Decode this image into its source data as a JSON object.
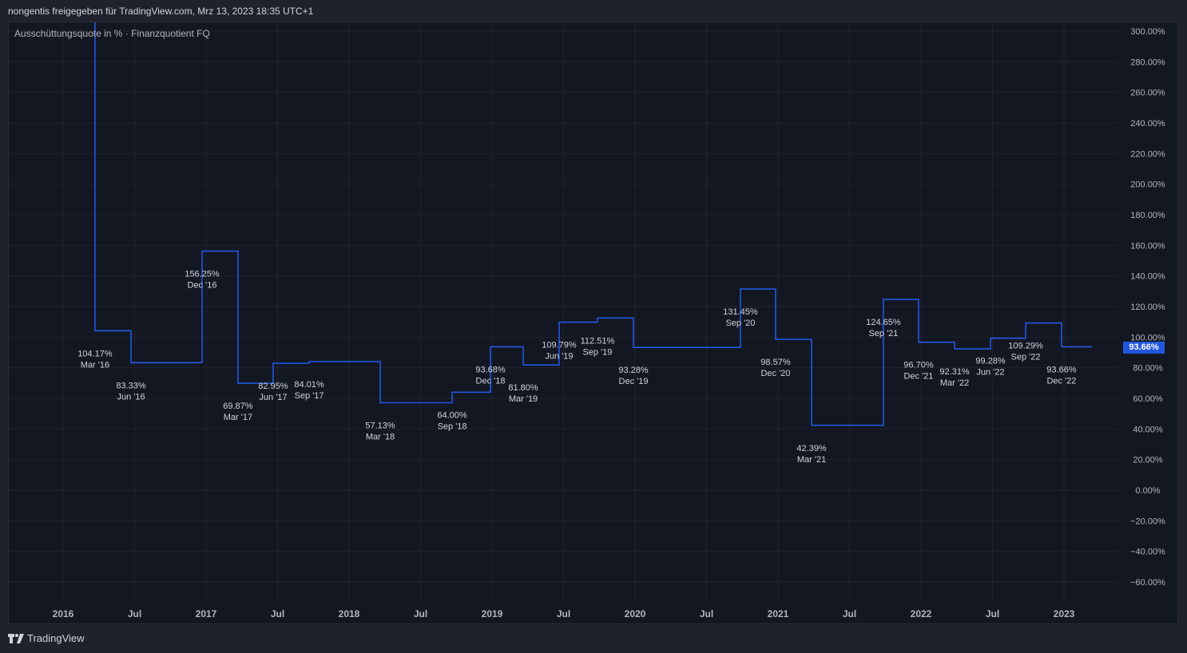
{
  "header": {
    "title": "nongentis freigegeben für TradingView.com, Mrz 13, 2023 18:35 UTC+1"
  },
  "legend": {
    "label": "Ausschüttungsquote in % · Finanzquotient FQ"
  },
  "footer": {
    "brand": "TradingView"
  },
  "last_value_badge": "93.66%",
  "colors": {
    "line": "#2157e0",
    "background": "#131722",
    "grid": "#1f2330",
    "text": "#d1d4dc"
  },
  "chart_data": {
    "type": "line",
    "style": "step",
    "title": "Ausschüttungsquote in % · Finanzquotient FQ",
    "ylim": [
      -70,
      300
    ],
    "yticks": [
      300,
      280,
      260,
      240,
      220,
      200,
      180,
      160,
      140,
      120,
      100,
      80,
      60,
      40,
      20,
      0,
      -20,
      -40,
      -60
    ],
    "ytick_labels": [
      "300.00%",
      "280.00%",
      "260.00%",
      "240.00%",
      "220.00%",
      "200.00%",
      "180.00%",
      "160.00%",
      "140.00%",
      "120.00%",
      "100.00%",
      "80.00%",
      "60.00%",
      "40.00%",
      "20.00%",
      "0.00%",
      "−20.00%",
      "−40.00%",
      "−60.00%"
    ],
    "xlim": [
      2015.78,
      2024.0
    ],
    "xticks": [
      {
        "x": 2016.0,
        "label": "2016"
      },
      {
        "x": 2016.5,
        "label": "Jul"
      },
      {
        "x": 2017.0,
        "label": "2017"
      },
      {
        "x": 2017.5,
        "label": "Jul"
      },
      {
        "x": 2018.0,
        "label": "2018"
      },
      {
        "x": 2018.5,
        "label": "Jul"
      },
      {
        "x": 2019.0,
        "label": "2019"
      },
      {
        "x": 2019.5,
        "label": "Jul"
      },
      {
        "x": 2020.0,
        "label": "2020"
      },
      {
        "x": 2020.5,
        "label": "Jul"
      },
      {
        "x": 2021.0,
        "label": "2021"
      },
      {
        "x": 2021.5,
        "label": "Jul"
      },
      {
        "x": 2022.0,
        "label": "2022"
      },
      {
        "x": 2022.5,
        "label": "Jul"
      },
      {
        "x": 2023.0,
        "label": "2023"
      }
    ],
    "prior_value_offscale": 400,
    "series": [
      {
        "name": "Ausschüttungsquote in %",
        "points": [
          {
            "x": 2016.223,
            "value": 104.17,
            "label": "104.17%",
            "period": "Mar '16"
          },
          {
            "x": 2016.475,
            "value": 83.33,
            "label": "83.33%",
            "period": "Jun '16"
          },
          {
            "x": 2016.972,
            "value": 156.25,
            "label": "156.25%",
            "period": "Dec '16"
          },
          {
            "x": 2017.223,
            "value": 69.87,
            "label": "69.87%",
            "period": "Mar '17"
          },
          {
            "x": 2017.469,
            "value": 82.95,
            "label": "82.95%",
            "period": "Jun '17"
          },
          {
            "x": 2017.721,
            "value": 84.01,
            "label": "84.01%",
            "period": "Sep '17"
          },
          {
            "x": 2018.218,
            "value": 57.13,
            "label": "57.13%",
            "period": "Mar '18"
          },
          {
            "x": 2018.721,
            "value": 64.0,
            "label": "64.00%",
            "period": "Sep '18"
          },
          {
            "x": 2018.989,
            "value": 93.68,
            "label": "93.68%",
            "period": "Dec '18"
          },
          {
            "x": 2019.218,
            "value": 81.8,
            "label": "81.80%",
            "period": "Mar '19"
          },
          {
            "x": 2019.469,
            "value": 109.79,
            "label": "109.79%",
            "period": "Jun '19"
          },
          {
            "x": 2019.737,
            "value": 112.51,
            "label": "112.51%",
            "period": "Sep '19"
          },
          {
            "x": 2019.989,
            "value": 93.28,
            "label": "93.28%",
            "period": "Dec '19"
          },
          {
            "x": 2020.737,
            "value": 131.45,
            "label": "131.45%",
            "period": "Sep '20"
          },
          {
            "x": 2020.983,
            "value": 98.57,
            "label": "98.57%",
            "period": "Dec '20"
          },
          {
            "x": 2021.235,
            "value": 42.39,
            "label": "42.39%",
            "period": "Mar '21"
          },
          {
            "x": 2021.737,
            "value": 124.65,
            "label": "124.65%",
            "period": "Sep '21"
          },
          {
            "x": 2021.983,
            "value": 96.7,
            "label": "96.70%",
            "period": "Dec '21"
          },
          {
            "x": 2022.235,
            "value": 92.31,
            "label": "92.31%",
            "period": "Mar '22"
          },
          {
            "x": 2022.486,
            "value": 99.28,
            "label": "99.28%",
            "period": "Jun '22"
          },
          {
            "x": 2022.732,
            "value": 109.29,
            "label": "109.29%",
            "period": "Sep '22"
          },
          {
            "x": 2022.983,
            "value": 93.66,
            "label": "93.66%",
            "period": "Dec '22"
          }
        ],
        "end_x": 2023.196
      }
    ]
  }
}
